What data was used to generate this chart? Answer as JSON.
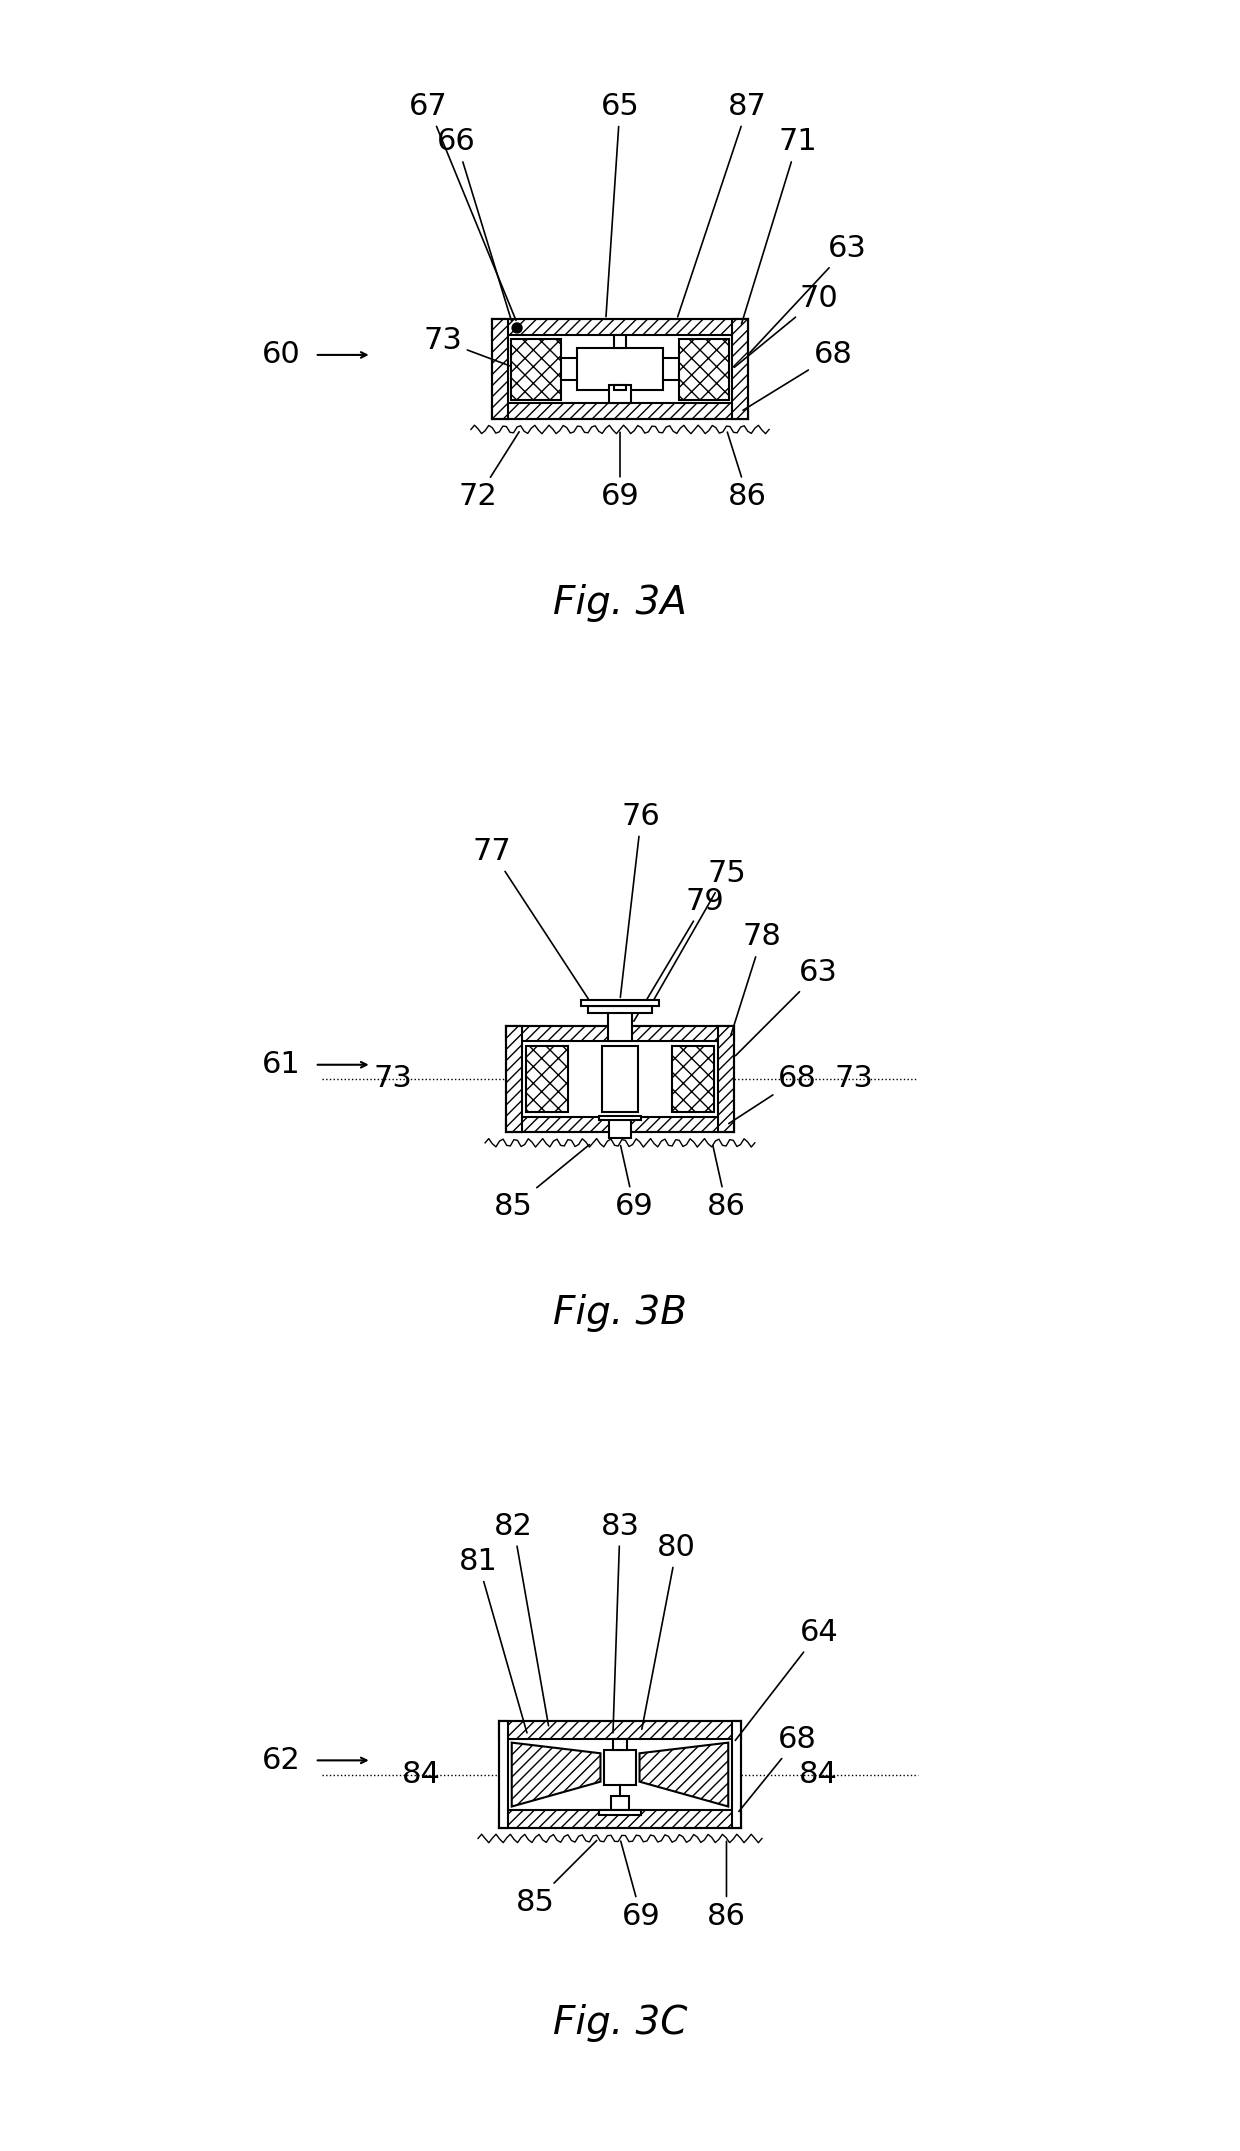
{
  "fig_title_A": "Fig. 3A",
  "fig_title_B": "Fig. 3B",
  "fig_title_C": "Fig. 3C",
  "label_A": "60",
  "label_B": "61",
  "label_C": "62",
  "bg_color": "#ffffff",
  "line_color": "#000000",
  "hatch_color": "#000000",
  "title_fontsize": 28,
  "label_fontsize": 22
}
